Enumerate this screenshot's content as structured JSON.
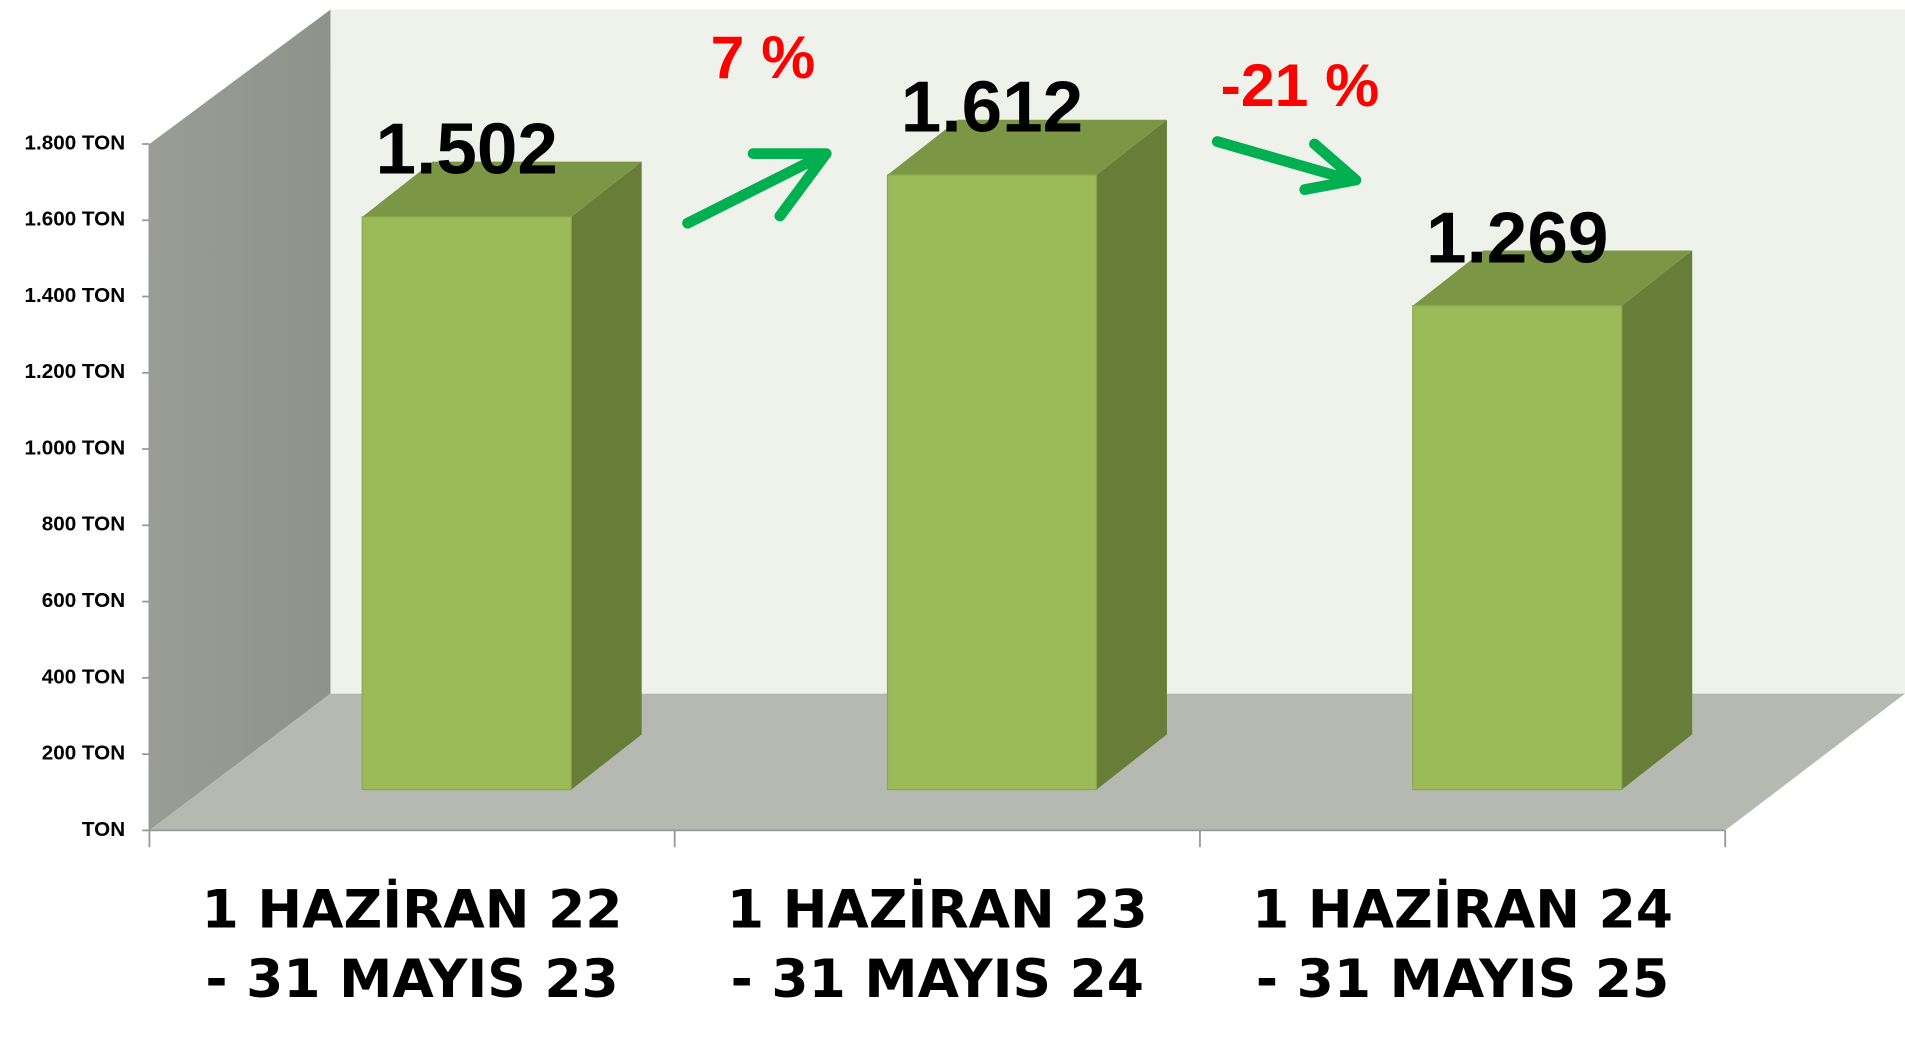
{
  "chart_data": {
    "type": "bar3d",
    "categories": [
      "1 HAZİRAN 22 - 31 MAYIS 23",
      "1 HAZİRAN 23 - 31 MAYIS 24",
      "1 HAZİRAN 24 - 31 MAYIS 25"
    ],
    "values": [
      1502,
      1612,
      1269
    ],
    "value_labels": [
      "1.502",
      "1.612",
      "1.269"
    ],
    "color": "#9bbb59",
    "ylim": [
      0,
      1800
    ],
    "yticks": [
      {
        "value": 0,
        "label": "TON"
      },
      {
        "value": 200,
        "label": "200 TON"
      },
      {
        "value": 400,
        "label": "400 TON"
      },
      {
        "value": 600,
        "label": "600 TON"
      },
      {
        "value": 800,
        "label": "800 TON"
      },
      {
        "value": 1000,
        "label": "1.000 TON"
      },
      {
        "value": 1200,
        "label": "1.200 TON"
      },
      {
        "value": 1400,
        "label": "1.400 TON"
      },
      {
        "value": 1600,
        "label": "1.600 TON"
      },
      {
        "value": 1800,
        "label": "1.800 TON"
      }
    ],
    "annotations": [
      "7 %",
      "-21 %"
    ]
  }
}
